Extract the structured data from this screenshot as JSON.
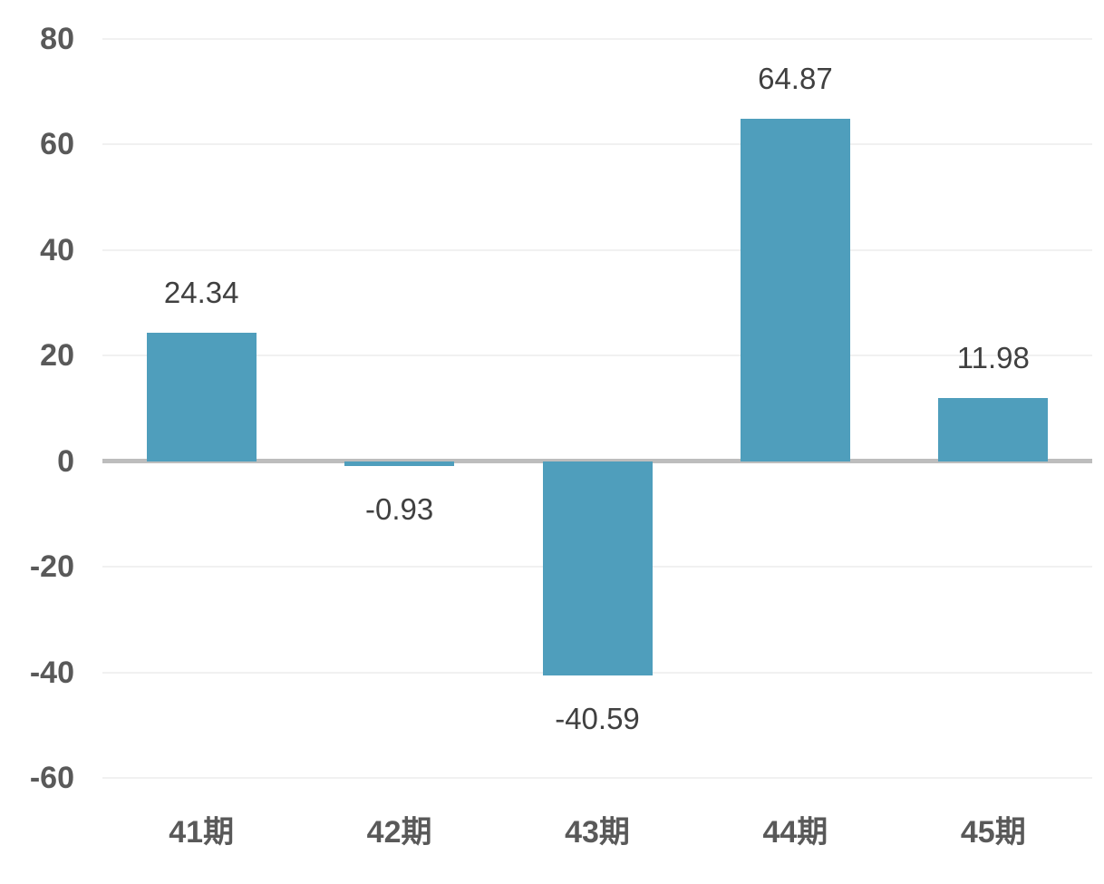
{
  "chart_data": {
    "type": "bar",
    "categories": [
      "41期",
      "42期",
      "43期",
      "44期",
      "45期"
    ],
    "values": [
      24.34,
      -0.93,
      -40.59,
      64.87,
      11.98
    ],
    "data_labels": [
      "24.34",
      "-0.93",
      "-40.59",
      "64.87",
      "11.98"
    ],
    "yticks": [
      80,
      60,
      40,
      20,
      0,
      -20,
      -40,
      -60
    ],
    "ytick_labels": [
      "80",
      "60",
      "40",
      "20",
      "0",
      "-20",
      "-40",
      "-60"
    ],
    "ylim": [
      -60,
      80
    ],
    "title": "",
    "xlabel": "",
    "ylabel": "",
    "grid": true,
    "legend": "none",
    "colors": {
      "bar": "#4f9ebc",
      "gridline": "#f1f1f1",
      "zero_line": "#bdbdbd",
      "ytick_text": "#595959",
      "xtick_text": "#595959",
      "data_label_text": "#404040",
      "background": "#ffffff"
    }
  }
}
